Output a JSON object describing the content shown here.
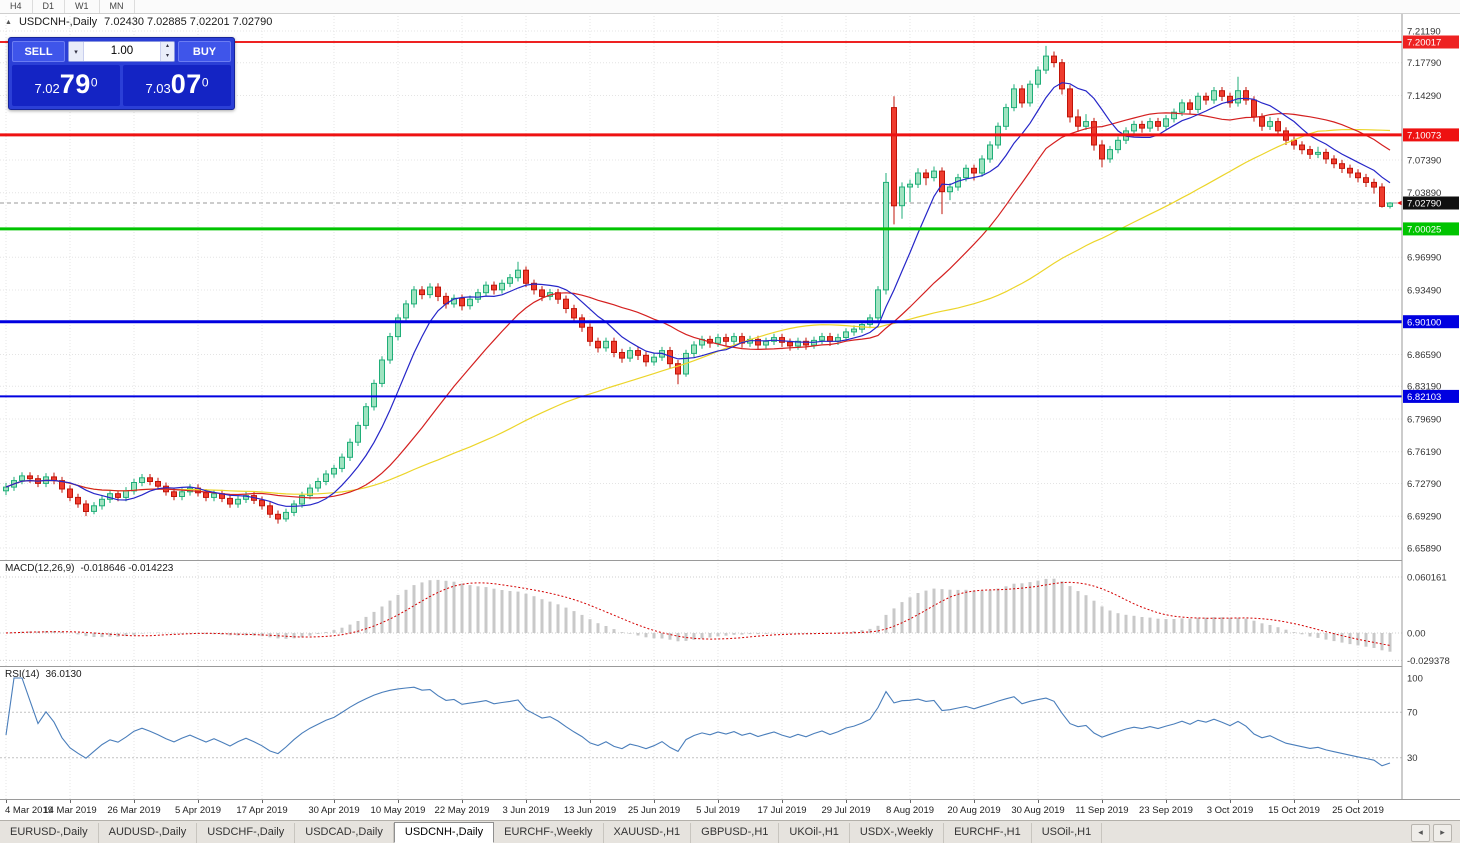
{
  "toolbar": {
    "timeframes": [
      "H4",
      "D1",
      "W1",
      "MN"
    ]
  },
  "icons": {
    "chart_arrow": "▲",
    "dropdown": "▾",
    "spin_up": "▴",
    "spin_down": "▾",
    "tab_prev": "◂",
    "tab_next": "▸"
  },
  "chart_header": {
    "symbol": "USDCNH-,Daily",
    "ohlc": "7.02430 7.02885 7.02201 7.02790"
  },
  "trade_widget": {
    "sell_label": "SELL",
    "buy_label": "BUY",
    "volume": "1.00",
    "sell_price": {
      "prefix": "7.02",
      "digits": "79",
      "sup": "0"
    },
    "buy_price": {
      "prefix": "7.03",
      "digits": "07",
      "sup": "0"
    }
  },
  "chart_data": {
    "type": "candlestick",
    "symbol": "USDCNH-,Daily",
    "timeframe": "Daily",
    "current_price": 7.0279,
    "current_price_label": "7.02790",
    "current_price_badge_color": "#101010",
    "price_axis": {
      "min": 6.6589,
      "max": 7.2119,
      "ticks": [
        "7.21190",
        "7.17790",
        "7.14290",
        "7.07390",
        "7.03890",
        "6.96990",
        "6.93490",
        "6.86590",
        "6.83190",
        "6.79690",
        "6.76190",
        "6.72790",
        "6.69290",
        "6.65890"
      ]
    },
    "levels": [
      {
        "price": 7.20017,
        "label": "7.20017",
        "color": "#ee2222",
        "width": 2
      },
      {
        "price": 7.10073,
        "label": "7.10073",
        "color": "#ee1111",
        "width": 3
      },
      {
        "price": 7.00025,
        "label": "7.00025",
        "color": "#00c400",
        "width": 3
      },
      {
        "price": 6.901,
        "label": "6.90100",
        "color": "#0000e0",
        "width": 3
      },
      {
        "price": 6.82103,
        "label": "6.82103",
        "color": "#0000e0",
        "width": 2
      }
    ],
    "colors": {
      "up_fill": "#9fe3c0",
      "up_stroke": "#1fae78",
      "down_fill": "#ef3c2e",
      "down_stroke": "#c01408"
    },
    "moving_averages": [
      {
        "period": 8,
        "color": "#2626c8",
        "name": "fast-ma"
      },
      {
        "period": 21,
        "color": "#d42020",
        "name": "mid-ma"
      },
      {
        "period": 55,
        "color": "#ecd52a",
        "name": "slow-ma"
      }
    ],
    "date_ticks": [
      {
        "label": "4 Mar 2019",
        "bar": 0
      },
      {
        "label": "14 Mar 2019",
        "bar": 8
      },
      {
        "label": "26 Mar 2019",
        "bar": 16
      },
      {
        "label": "5 Apr 2019",
        "bar": 24
      },
      {
        "label": "17 Apr 2019",
        "bar": 32
      },
      {
        "label": "30 Apr 2019",
        "bar": 41
      },
      {
        "label": "10 May 2019",
        "bar": 49
      },
      {
        "label": "22 May 2019",
        "bar": 57
      },
      {
        "label": "3 Jun 2019",
        "bar": 65
      },
      {
        "label": "13 Jun 2019",
        "bar": 73
      },
      {
        "label": "25 Jun 2019",
        "bar": 81
      },
      {
        "label": "5 Jul 2019",
        "bar": 89
      },
      {
        "label": "17 Jul 2019",
        "bar": 97
      },
      {
        "label": "29 Jul 2019",
        "bar": 105
      },
      {
        "label": "8 Aug 2019",
        "bar": 113
      },
      {
        "label": "20 Aug 2019",
        "bar": 121
      },
      {
        "label": "30 Aug 2019",
        "bar": 129
      },
      {
        "label": "11 Sep 2019",
        "bar": 137
      },
      {
        "label": "23 Sep 2019",
        "bar": 145
      },
      {
        "label": "3 Oct 2019",
        "bar": 153
      },
      {
        "label": "15 Oct 2019",
        "bar": 161
      },
      {
        "label": "25 Oct 2019",
        "bar": 169
      }
    ],
    "candles": [
      [
        6.72,
        6.7285,
        6.7155,
        6.724
      ],
      [
        6.724,
        6.735,
        6.72,
        6.731
      ],
      [
        6.731,
        6.74,
        6.727,
        6.736
      ],
      [
        6.736,
        6.74,
        6.7285,
        6.733
      ],
      [
        6.733,
        6.737,
        6.724,
        6.728
      ],
      [
        6.728,
        6.739,
        6.724,
        6.735
      ],
      [
        6.735,
        6.7395,
        6.727,
        6.731
      ],
      [
        6.731,
        6.735,
        6.718,
        6.722
      ],
      [
        6.722,
        6.726,
        6.709,
        6.713
      ],
      [
        6.713,
        6.717,
        6.702,
        6.706
      ],
      [
        6.706,
        6.71,
        6.693,
        6.698
      ],
      [
        6.698,
        6.708,
        6.695,
        6.704
      ],
      [
        6.704,
        6.715,
        6.7,
        6.711
      ],
      [
        6.711,
        6.721,
        6.707,
        6.717
      ],
      [
        6.717,
        6.72,
        6.709,
        6.713
      ],
      [
        6.713,
        6.724,
        6.709,
        6.72
      ],
      [
        6.72,
        6.733,
        6.716,
        6.729
      ],
      [
        6.729,
        6.738,
        6.725,
        6.734
      ],
      [
        6.734,
        6.738,
        6.726,
        6.73
      ],
      [
        6.73,
        6.734,
        6.721,
        6.725
      ],
      [
        6.725,
        6.729,
        6.715,
        6.719
      ],
      [
        6.719,
        6.723,
        6.71,
        6.714
      ],
      [
        6.714,
        6.723,
        6.71,
        6.719
      ],
      [
        6.719,
        6.727,
        6.715,
        6.723
      ],
      [
        6.723,
        6.727,
        6.714,
        6.718
      ],
      [
        6.718,
        6.722,
        6.709,
        6.713
      ],
      [
        6.713,
        6.721,
        6.709,
        6.717
      ],
      [
        6.717,
        6.721,
        6.708,
        6.712
      ],
      [
        6.712,
        6.716,
        6.702,
        6.706
      ],
      [
        6.706,
        6.715,
        6.702,
        6.711
      ],
      [
        6.711,
        6.719,
        6.707,
        6.715
      ],
      [
        6.715,
        6.719,
        6.706,
        6.71
      ],
      [
        6.71,
        6.714,
        6.7,
        6.704
      ],
      [
        6.704,
        6.708,
        6.691,
        6.695
      ],
      [
        6.695,
        6.699,
        6.685,
        6.69
      ],
      [
        6.69,
        6.701,
        6.687,
        6.697
      ],
      [
        6.697,
        6.71,
        6.693,
        6.706
      ],
      [
        6.706,
        6.719,
        6.702,
        6.715
      ],
      [
        6.715,
        6.727,
        6.711,
        6.723
      ],
      [
        6.723,
        6.734,
        6.719,
        6.73
      ],
      [
        6.73,
        6.742,
        6.726,
        6.738
      ],
      [
        6.738,
        6.748,
        6.734,
        6.744
      ],
      [
        6.744,
        6.76,
        6.74,
        6.756
      ],
      [
        6.756,
        6.776,
        6.752,
        6.772
      ],
      [
        6.772,
        6.794,
        6.768,
        6.79
      ],
      [
        6.79,
        6.814,
        6.786,
        6.81
      ],
      [
        6.81,
        6.839,
        6.806,
        6.835
      ],
      [
        6.835,
        6.864,
        6.831,
        6.86
      ],
      [
        6.86,
        6.889,
        6.856,
        6.885
      ],
      [
        6.885,
        6.909,
        6.881,
        6.905
      ],
      [
        6.905,
        6.924,
        6.901,
        6.92
      ],
      [
        6.92,
        6.939,
        6.916,
        6.935
      ],
      [
        6.935,
        6.939,
        6.925,
        6.93
      ],
      [
        6.93,
        6.942,
        6.926,
        6.938
      ],
      [
        6.938,
        6.942,
        6.923,
        6.928
      ],
      [
        6.928,
        6.932,
        6.915,
        6.92
      ],
      [
        6.92,
        6.93,
        6.916,
        6.926
      ],
      [
        6.926,
        6.93,
        6.913,
        6.918
      ],
      [
        6.918,
        6.929,
        6.914,
        6.925
      ],
      [
        6.925,
        6.936,
        6.921,
        6.932
      ],
      [
        6.932,
        6.944,
        6.928,
        6.94
      ],
      [
        6.94,
        6.944,
        6.93,
        6.935
      ],
      [
        6.935,
        6.946,
        6.931,
        6.942
      ],
      [
        6.942,
        6.952,
        6.938,
        6.948
      ],
      [
        6.948,
        6.965,
        6.944,
        6.956
      ],
      [
        6.956,
        6.96,
        6.938,
        6.942
      ],
      [
        6.942,
        6.946,
        6.93,
        6.935
      ],
      [
        6.935,
        6.939,
        6.923,
        6.928
      ],
      [
        6.928,
        6.936,
        6.924,
        6.932
      ],
      [
        6.932,
        6.936,
        6.92,
        6.925
      ],
      [
        6.925,
        6.929,
        6.91,
        6.915
      ],
      [
        6.915,
        6.919,
        6.9,
        6.905
      ],
      [
        6.905,
        6.909,
        6.89,
        6.895
      ],
      [
        6.895,
        6.899,
        6.875,
        6.88
      ],
      [
        6.88,
        6.884,
        6.868,
        6.873
      ],
      [
        6.873,
        6.884,
        6.869,
        6.88
      ],
      [
        6.88,
        6.884,
        6.863,
        6.868
      ],
      [
        6.868,
        6.872,
        6.857,
        6.862
      ],
      [
        6.862,
        6.874,
        6.858,
        6.87
      ],
      [
        6.87,
        6.874,
        6.86,
        6.865
      ],
      [
        6.865,
        6.869,
        6.853,
        6.858
      ],
      [
        6.858,
        6.867,
        6.854,
        6.863
      ],
      [
        6.863,
        6.874,
        6.859,
        6.87
      ],
      [
        6.87,
        6.874,
        6.851,
        6.856
      ],
      [
        6.856,
        6.86,
        6.834,
        6.845
      ],
      [
        6.845,
        6.871,
        6.842,
        6.867
      ],
      [
        6.867,
        6.88,
        6.863,
        6.876
      ],
      [
        6.876,
        6.886,
        6.872,
        6.882
      ],
      [
        6.882,
        6.886,
        6.873,
        6.878
      ],
      [
        6.878,
        6.888,
        6.874,
        6.884
      ],
      [
        6.884,
        6.888,
        6.875,
        6.88
      ],
      [
        6.88,
        6.889,
        6.876,
        6.885
      ],
      [
        6.885,
        6.889,
        6.873,
        6.878
      ],
      [
        6.878,
        6.886,
        6.874,
        6.882
      ],
      [
        6.882,
        6.886,
        6.871,
        6.876
      ],
      [
        6.876,
        6.884,
        6.872,
        6.88
      ],
      [
        6.88,
        6.888,
        6.876,
        6.884
      ],
      [
        6.884,
        6.888,
        6.874,
        6.879
      ],
      [
        6.879,
        6.883,
        6.87,
        6.875
      ],
      [
        6.875,
        6.884,
        6.871,
        6.88
      ],
      [
        6.88,
        6.884,
        6.871,
        6.876
      ],
      [
        6.876,
        6.885,
        6.872,
        6.881
      ],
      [
        6.881,
        6.889,
        6.877,
        6.885
      ],
      [
        6.885,
        6.889,
        6.875,
        6.88
      ],
      [
        6.88,
        6.888,
        6.876,
        6.884
      ],
      [
        6.884,
        6.894,
        6.88,
        6.89
      ],
      [
        6.89,
        6.897,
        6.886,
        6.893
      ],
      [
        6.893,
        6.902,
        6.889,
        6.898
      ],
      [
        6.898,
        6.909,
        6.894,
        6.905
      ],
      [
        6.905,
        6.939,
        6.901,
        6.935
      ],
      [
        6.935,
        7.06,
        6.93,
        7.05
      ],
      [
        7.13,
        7.142,
        7.005,
        7.025
      ],
      [
        7.025,
        7.05,
        7.011,
        7.045
      ],
      [
        7.045,
        7.053,
        7.029,
        7.048
      ],
      [
        7.048,
        7.065,
        7.044,
        7.06
      ],
      [
        7.06,
        7.064,
        7.047,
        7.055
      ],
      [
        7.055,
        7.067,
        7.051,
        7.062
      ],
      [
        7.062,
        7.066,
        7.016,
        7.04
      ],
      [
        7.04,
        7.049,
        7.031,
        7.045
      ],
      [
        7.045,
        7.059,
        7.041,
        7.055
      ],
      [
        7.055,
        7.069,
        7.051,
        7.065
      ],
      [
        7.065,
        7.069,
        7.052,
        7.06
      ],
      [
        7.06,
        7.079,
        7.056,
        7.075
      ],
      [
        7.075,
        7.094,
        7.071,
        7.09
      ],
      [
        7.09,
        7.114,
        7.086,
        7.11
      ],
      [
        7.11,
        7.134,
        7.106,
        7.13
      ],
      [
        7.13,
        7.155,
        7.126,
        7.15
      ],
      [
        7.15,
        7.154,
        7.13,
        7.135
      ],
      [
        7.135,
        7.159,
        7.131,
        7.155
      ],
      [
        7.155,
        7.174,
        7.151,
        7.17
      ],
      [
        7.17,
        7.196,
        7.166,
        7.185
      ],
      [
        7.185,
        7.19,
        7.173,
        7.178
      ],
      [
        7.178,
        7.182,
        7.144,
        7.15
      ],
      [
        7.15,
        7.154,
        7.114,
        7.12
      ],
      [
        7.12,
        7.128,
        7.104,
        7.11
      ],
      [
        7.11,
        7.123,
        7.106,
        7.115
      ],
      [
        7.115,
        7.119,
        7.084,
        7.09
      ],
      [
        7.09,
        7.095,
        7.066,
        7.075
      ],
      [
        7.075,
        7.089,
        7.071,
        7.085
      ],
      [
        7.085,
        7.099,
        7.081,
        7.095
      ],
      [
        7.095,
        7.109,
        7.091,
        7.105
      ],
      [
        7.105,
        7.116,
        7.101,
        7.112
      ],
      [
        7.112,
        7.116,
        7.103,
        7.108
      ],
      [
        7.108,
        7.119,
        7.104,
        7.115
      ],
      [
        7.115,
        7.119,
        7.105,
        7.11
      ],
      [
        7.11,
        7.122,
        7.106,
        7.118
      ],
      [
        7.118,
        7.129,
        7.114,
        7.125
      ],
      [
        7.125,
        7.139,
        7.121,
        7.135
      ],
      [
        7.135,
        7.139,
        7.123,
        7.128
      ],
      [
        7.128,
        7.146,
        7.124,
        7.142
      ],
      [
        7.142,
        7.146,
        7.133,
        7.138
      ],
      [
        7.138,
        7.152,
        7.134,
        7.148
      ],
      [
        7.148,
        7.152,
        7.137,
        7.142
      ],
      [
        7.142,
        7.146,
        7.13,
        7.135
      ],
      [
        7.135,
        7.163,
        7.131,
        7.148
      ],
      [
        7.148,
        7.152,
        7.133,
        7.138
      ],
      [
        7.138,
        7.142,
        7.115,
        7.12
      ],
      [
        7.12,
        7.124,
        7.105,
        7.11
      ],
      [
        7.11,
        7.12,
        7.106,
        7.115
      ],
      [
        7.115,
        7.119,
        7.1,
        7.105
      ],
      [
        7.105,
        7.109,
        7.09,
        7.095
      ],
      [
        7.095,
        7.099,
        7.085,
        7.09
      ],
      [
        7.09,
        7.094,
        7.08,
        7.085
      ],
      [
        7.085,
        7.089,
        7.075,
        7.08
      ],
      [
        7.08,
        7.088,
        7.076,
        7.082
      ],
      [
        7.082,
        7.086,
        7.07,
        7.075
      ],
      [
        7.075,
        7.079,
        7.065,
        7.07
      ],
      [
        7.07,
        7.074,
        7.06,
        7.065
      ],
      [
        7.065,
        7.069,
        7.055,
        7.06
      ],
      [
        7.06,
        7.064,
        7.05,
        7.055
      ],
      [
        7.055,
        7.059,
        7.045,
        7.05
      ],
      [
        7.05,
        7.054,
        7.038,
        7.045
      ],
      [
        7.045,
        7.049,
        7.023,
        7.0243
      ],
      [
        7.0243,
        7.0289,
        7.022,
        7.0279
      ]
    ],
    "macd": {
      "label": "MACD(12,26,9)",
      "values_text": "-0.018646 -0.014223",
      "fast": 12,
      "slow": 26,
      "signal": 9,
      "axis_labels": [
        "0.060161",
        "0.00",
        "-0.029378"
      ],
      "axis_values": [
        0.060161,
        0,
        -0.029378
      ],
      "histogram_color": "#c9c9c9",
      "signal_color": "#d40000"
    },
    "rsi": {
      "label": "RSI(14)",
      "value_text": "36.0130",
      "period": 14,
      "line_color": "#4a7ebb",
      "axis_labels": [
        "100",
        "70",
        "30"
      ],
      "axis_values": [
        100,
        70,
        30
      ],
      "levels": [
        70,
        30
      ]
    }
  },
  "tabbar": {
    "tabs": [
      {
        "label": "EURUSD-,Daily"
      },
      {
        "label": "AUDUSD-,Daily"
      },
      {
        "label": "USDCHF-,Daily"
      },
      {
        "label": "USDCAD-,Daily"
      },
      {
        "label": "USDCNH-,Daily"
      },
      {
        "label": "EURCHF-,Weekly"
      },
      {
        "label": "XAUUSD-,H1"
      },
      {
        "label": "GBPUSD-,H1"
      },
      {
        "label": "UKOil-,H1"
      },
      {
        "label": "USDX-,Weekly"
      },
      {
        "label": "EURCHF-,H1"
      },
      {
        "label": "USOil-,H1"
      }
    ],
    "active_index": 4
  }
}
